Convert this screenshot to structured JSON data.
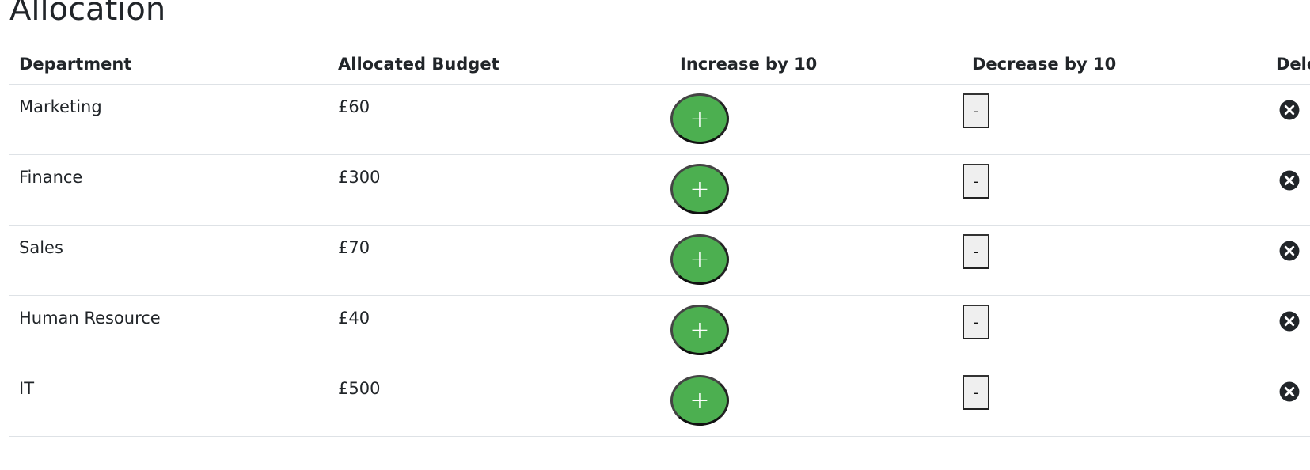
{
  "page": {
    "title": "Allocation"
  },
  "table": {
    "headers": {
      "department": "Department",
      "budget": "Allocated Budget",
      "increase": "Increase by 10",
      "decrease": "Decrease by 10",
      "delete": "Delete"
    },
    "rows": [
      {
        "department": "Marketing",
        "budget": "£60"
      },
      {
        "department": "Finance",
        "budget": "£300"
      },
      {
        "department": "Sales",
        "budget": "£70"
      },
      {
        "department": "Human Resource",
        "budget": "£40"
      },
      {
        "department": "IT",
        "budget": "£500"
      }
    ],
    "increase_label": "+",
    "decrease_label": "-",
    "delete_icon": "close-circle-icon"
  },
  "colors": {
    "increase_bg": "#4caf50",
    "delete_icon": "#212529"
  }
}
